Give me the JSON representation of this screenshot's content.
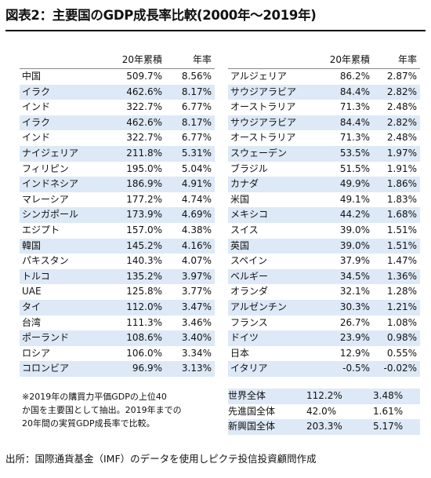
{
  "title": "図表2：主要国のGDP成長率比較(2000年～2019年)",
  "columns": {
    "cumulative": "20年累積",
    "annual": "年率"
  },
  "left_rows": [
    {
      "name": "中国",
      "cum": "509.7%",
      "rate": "8.56%"
    },
    {
      "name": "イラク",
      "cum": "462.6%",
      "rate": "8.17%"
    },
    {
      "name": "インド",
      "cum": "322.7%",
      "rate": "6.77%"
    },
    {
      "name": "イラク",
      "cum": "462.6%",
      "rate": "8.17%"
    },
    {
      "name": "インド",
      "cum": "322.7%",
      "rate": "6.77%"
    },
    {
      "name": "ナイジェリア",
      "cum": "211.8%",
      "rate": "5.31%"
    },
    {
      "name": "フィリピン",
      "cum": "195.0%",
      "rate": "5.04%"
    },
    {
      "name": "インドネシア",
      "cum": "186.9%",
      "rate": "4.91%"
    },
    {
      "name": "マレーシア",
      "cum": "177.2%",
      "rate": "4.74%"
    },
    {
      "name": "シンガポール",
      "cum": "173.9%",
      "rate": "4.69%"
    },
    {
      "name": "エジプト",
      "cum": "157.0%",
      "rate": "4.38%"
    },
    {
      "name": "韓国",
      "cum": "145.2%",
      "rate": "4.16%"
    },
    {
      "name": "パキスタン",
      "cum": "140.3%",
      "rate": "4.07%"
    },
    {
      "name": "トルコ",
      "cum": "135.2%",
      "rate": "3.97%"
    },
    {
      "name": "UAE",
      "cum": "125.8%",
      "rate": "3.77%"
    },
    {
      "name": "タイ",
      "cum": "112.0%",
      "rate": "3.47%"
    },
    {
      "name": "台湾",
      "cum": "111.3%",
      "rate": "3.46%"
    },
    {
      "name": "ポーランド",
      "cum": "108.6%",
      "rate": "3.40%"
    },
    {
      "name": "ロシア",
      "cum": "106.0%",
      "rate": "3.34%"
    },
    {
      "name": "コロンビア",
      "cum": "96.9%",
      "rate": "3.13%"
    }
  ],
  "right_rows": [
    {
      "name": "アルジェリア",
      "cum": "86.2%",
      "rate": "2.87%"
    },
    {
      "name": "サウジアラビア",
      "cum": "84.4%",
      "rate": "2.82%"
    },
    {
      "name": "オーストラリア",
      "cum": "71.3%",
      "rate": "2.48%"
    },
    {
      "name": "サウジアラビア",
      "cum": "84.4%",
      "rate": "2.82%"
    },
    {
      "name": "オーストラリア",
      "cum": "71.3%",
      "rate": "2.48%"
    },
    {
      "name": "スウェーデン",
      "cum": "53.5%",
      "rate": "1.97%"
    },
    {
      "name": "ブラジル",
      "cum": "51.5%",
      "rate": "1.91%"
    },
    {
      "name": "カナダ",
      "cum": "49.9%",
      "rate": "1.86%"
    },
    {
      "name": "米国",
      "cum": "49.1%",
      "rate": "1.83%"
    },
    {
      "name": "メキシコ",
      "cum": "44.2%",
      "rate": "1.68%"
    },
    {
      "name": "スイス",
      "cum": "39.0%",
      "rate": "1.51%"
    },
    {
      "name": "英国",
      "cum": "39.0%",
      "rate": "1.51%"
    },
    {
      "name": "スペイン",
      "cum": "37.9%",
      "rate": "1.47%"
    },
    {
      "name": "ベルギー",
      "cum": "34.5%",
      "rate": "1.36%"
    },
    {
      "name": "オランダ",
      "cum": "32.1%",
      "rate": "1.28%"
    },
    {
      "name": "アルゼンチン",
      "cum": "30.3%",
      "rate": "1.21%"
    },
    {
      "name": "フランス",
      "cum": "26.7%",
      "rate": "1.08%"
    },
    {
      "name": "ドイツ",
      "cum": "23.9%",
      "rate": "0.98%"
    },
    {
      "name": "日本",
      "cum": "12.9%",
      "rate": "0.55%"
    },
    {
      "name": "イタリア",
      "cum": "-0.5%",
      "rate": "-0.02%"
    }
  ],
  "totals": [
    {
      "name": "世界全体",
      "cum": "112.2%",
      "rate": "3.48%"
    },
    {
      "name": "先進国全体",
      "cum": "42.0%",
      "rate": "1.61%"
    },
    {
      "name": "新興国全体",
      "cum": "203.3%",
      "rate": "5.17%"
    }
  ],
  "note": [
    "※2019年の購買力平価GDPの上位40",
    "か国を主要国として抽出。2019年までの",
    "20年間の実質GDP成長率で比較。"
  ],
  "source": "出所：国際通貨基金（IMF）のデータを使用しピクテ投信投資顧問作成",
  "colors": {
    "stripe": "#dde9f6",
    "text": "#111111"
  }
}
